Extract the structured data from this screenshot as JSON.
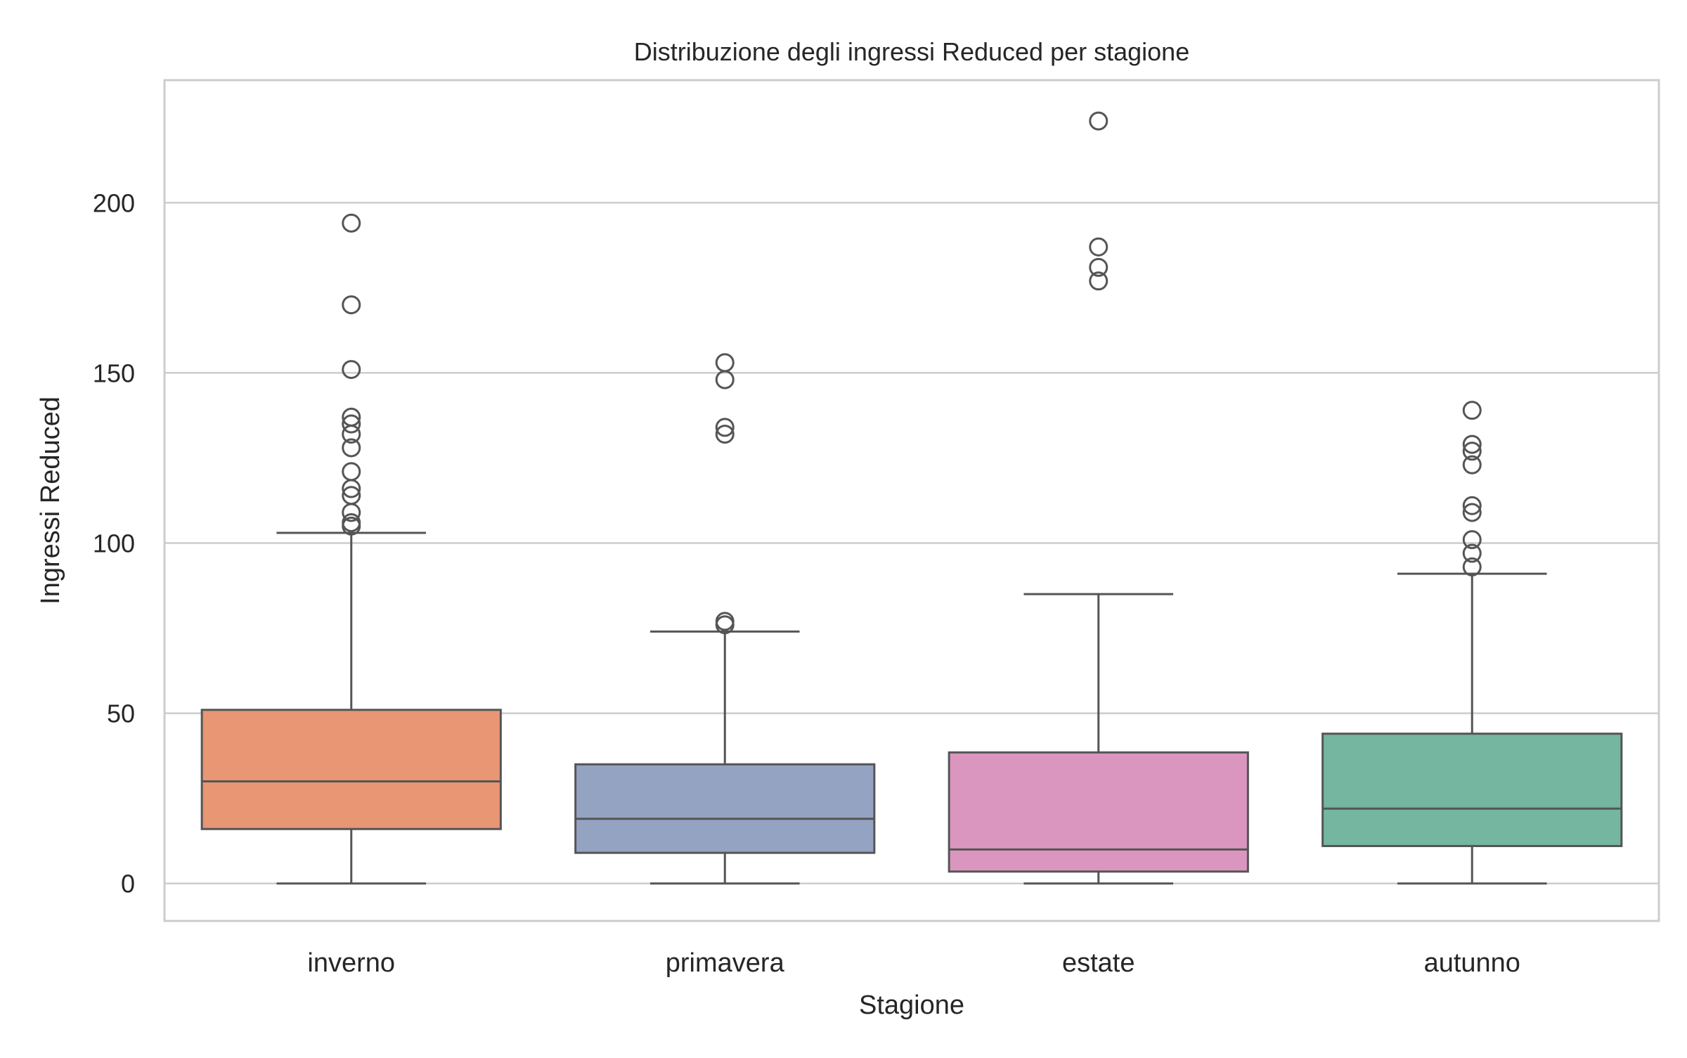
{
  "chart_data": {
    "type": "box",
    "title": "Distribuzione degli ingressi Reduced per stagione",
    "xlabel": "Stagione",
    "ylabel": "Ingressi Reduced",
    "ylim": [
      -11,
      236
    ],
    "yticks": [
      0,
      50,
      100,
      150,
      200
    ],
    "grid": true,
    "categories": [
      "inverno",
      "primavera",
      "estate",
      "autunno"
    ],
    "boxes": [
      {
        "category": "inverno",
        "color": "#e99675",
        "whisker_low": 0,
        "q1": 16,
        "median": 30,
        "q3": 51,
        "whisker_high": 103,
        "outliers": [
          105,
          106,
          109,
          114,
          116,
          121,
          128,
          132,
          135,
          137,
          151,
          170,
          194
        ]
      },
      {
        "category": "primavera",
        "color": "#95a3c3",
        "whisker_low": 0,
        "q1": 9,
        "median": 19,
        "q3": 35,
        "whisker_high": 74,
        "outliers": [
          76,
          77,
          132,
          134,
          148,
          153
        ]
      },
      {
        "category": "estate",
        "color": "#db96c0",
        "whisker_low": 0,
        "q1": 3.5,
        "median": 10,
        "q3": 38.5,
        "whisker_high": 85,
        "outliers": [
          177,
          181,
          187,
          224
        ]
      },
      {
        "category": "autunno",
        "color": "#74b6a0",
        "whisker_low": 0,
        "q1": 11,
        "median": 22,
        "q3": 44,
        "whisker_high": 91,
        "outliers": [
          93,
          97,
          101,
          109,
          111,
          123,
          127,
          129,
          139
        ]
      }
    ]
  }
}
